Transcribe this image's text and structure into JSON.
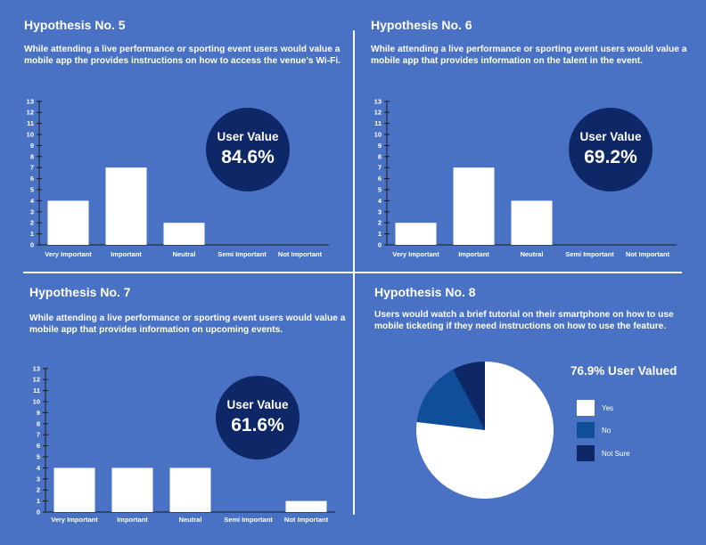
{
  "colors": {
    "background": "#4a72c4",
    "bar": "#ffffff",
    "badge": "#0e2766",
    "pie_yes": "#ffffff",
    "pie_no": "#0f4f9a",
    "pie_not_sure": "#0e2766"
  },
  "panels": [
    {
      "title": "Hypothesis No. 5",
      "description": "While attending a live performance or sporting event users would value a mobile app the provides instructions on how to access the venue's Wi-Fi.",
      "badge_label": "User Value",
      "badge_value": "84.6%"
    },
    {
      "title": "Hypothesis No. 6",
      "description": "While attending a live performance or sporting event users would value a mobile app that provides information on the talent in the event.",
      "badge_label": "User Value",
      "badge_value": "69.2%"
    },
    {
      "title": "Hypothesis No. 7",
      "description": "While attending a live performance or sporting event users would value a mobile app that provides information on upcoming events.",
      "badge_label": "User Value",
      "badge_value": "61.6%"
    },
    {
      "title": "Hypothesis No. 8",
      "description": "Users would watch a brief tutorial on their smartphone on how to use mobile ticketing if they need instructions on how to use the feature.",
      "pie_heading": "76.9% User Valued"
    }
  ],
  "chart_data": [
    {
      "type": "bar",
      "categories": [
        "Very Important",
        "Important",
        "Neutral",
        "Semi Important",
        "Not Important"
      ],
      "values": [
        4,
        7,
        2,
        0,
        0
      ],
      "ylim": [
        0,
        13
      ],
      "yticks": [
        0,
        1,
        2,
        3,
        4,
        5,
        6,
        7,
        8,
        9,
        10,
        11,
        12,
        13
      ]
    },
    {
      "type": "bar",
      "categories": [
        "Very Important",
        "Important",
        "Neutral",
        "Semi Important",
        "Not Important"
      ],
      "values": [
        2,
        7,
        4,
        0,
        0
      ],
      "ylim": [
        0,
        13
      ],
      "yticks": [
        0,
        1,
        2,
        3,
        4,
        5,
        6,
        7,
        8,
        9,
        10,
        11,
        12,
        13
      ]
    },
    {
      "type": "bar",
      "categories": [
        "Very Important",
        "Important",
        "Neutral",
        "Semi Important",
        "Not Important"
      ],
      "values": [
        4,
        4,
        4,
        0,
        1
      ],
      "ylim": [
        0,
        13
      ],
      "yticks": [
        0,
        1,
        2,
        3,
        4,
        5,
        6,
        7,
        8,
        9,
        10,
        11,
        12,
        13
      ]
    },
    {
      "type": "pie",
      "labels": [
        "Yes",
        "No",
        "Not Sure"
      ],
      "values": [
        76.9,
        15.4,
        7.7
      ],
      "legend": "right"
    }
  ]
}
